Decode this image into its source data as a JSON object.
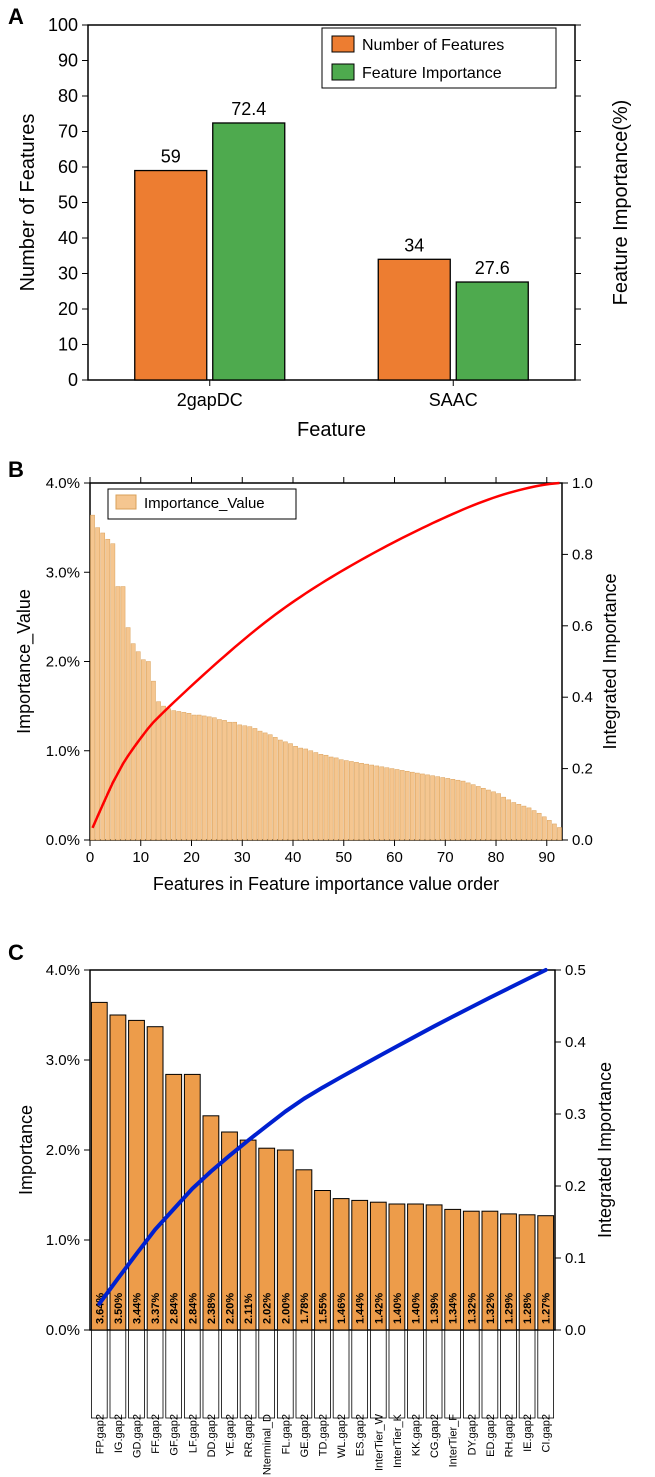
{
  "panelA": {
    "letter": "A",
    "type": "grouped-bar",
    "categories": [
      "2gapDC",
      "SAAC"
    ],
    "series": [
      {
        "name": "Number of Features",
        "color": "#ed7d31",
        "values": [
          59,
          34
        ]
      },
      {
        "name": "Feature Importance",
        "color": "#4eaa4e",
        "values": [
          72.4,
          27.6
        ]
      }
    ],
    "border_color": "#000000",
    "border_width": 1.3,
    "y_left": {
      "label": "Number of Features",
      "min": 0,
      "max": 100,
      "step": 10
    },
    "y_right": {
      "label": "Feature Importance(%)"
    },
    "x_label": "Feature",
    "legend": {
      "pos": "top-right",
      "items": [
        "Number of Features",
        "Feature Importance"
      ]
    },
    "value_labels": [
      "59",
      "72.4",
      "34",
      "27.6"
    ],
    "label_fontsize": 18,
    "tick_fontsize": 18,
    "title_fontsize": 20
  },
  "panelB": {
    "letter": "B",
    "type": "bar+line",
    "bar_color": "#f5c690",
    "bar_border": "#d9a05a",
    "line_color": "#ff0000",
    "line_width": 2.5,
    "x": {
      "label": "Features in Feature importance value order",
      "min": 0,
      "max": 93,
      "step": 10
    },
    "y_left": {
      "label": "Importance_Value",
      "min": 0,
      "max": 4.0,
      "step": 1.0,
      "suffix": "%"
    },
    "y_right": {
      "label": "Integrated Importance",
      "min": 0,
      "max": 1.0,
      "step": 0.2
    },
    "legend": {
      "pos": "top-left-inset",
      "items": [
        "Importance_Value"
      ]
    },
    "bars": [
      3.64,
      3.5,
      3.44,
      3.37,
      3.32,
      2.84,
      2.84,
      2.38,
      2.2,
      2.11,
      2.02,
      2.0,
      1.78,
      1.55,
      1.5,
      1.47,
      1.45,
      1.44,
      1.43,
      1.42,
      1.4,
      1.4,
      1.39,
      1.38,
      1.37,
      1.35,
      1.34,
      1.32,
      1.32,
      1.29,
      1.28,
      1.27,
      1.25,
      1.22,
      1.2,
      1.18,
      1.15,
      1.12,
      1.1,
      1.08,
      1.05,
      1.03,
      1.02,
      1.0,
      0.98,
      0.96,
      0.95,
      0.93,
      0.92,
      0.9,
      0.89,
      0.88,
      0.87,
      0.86,
      0.85,
      0.84,
      0.83,
      0.82,
      0.81,
      0.8,
      0.79,
      0.78,
      0.77,
      0.76,
      0.75,
      0.74,
      0.73,
      0.72,
      0.71,
      0.7,
      0.69,
      0.68,
      0.67,
      0.66,
      0.64,
      0.62,
      0.6,
      0.58,
      0.56,
      0.54,
      0.52,
      0.48,
      0.45,
      0.42,
      0.4,
      0.38,
      0.36,
      0.33,
      0.3,
      0.26,
      0.22,
      0.18,
      0.14
    ]
  },
  "panelC": {
    "letter": "C",
    "type": "bar+line",
    "bar_color": "#ed9c4a",
    "bar_border": "#000000",
    "line_color": "#0020d0",
    "line_width": 4,
    "y_left": {
      "label": "Importance",
      "min": 0,
      "max": 4.0,
      "step": 1.0,
      "suffix": "%"
    },
    "y_right": {
      "label": "Integrated Importance",
      "min": 0,
      "max": 0.5,
      "step": 0.1
    },
    "features": [
      "FP.gap2",
      "IG.gap2",
      "GD.gap2",
      "FF.gap2",
      "GF.gap2",
      "LF.gap2",
      "DD.gap2",
      "YE.gap2",
      "RR.gap2",
      "Nterminal_D",
      "FL.gap2",
      "GE.gap2",
      "TD.gap2",
      "WL.gap2",
      "ES.gap2",
      "InterTier_W",
      "InterTier_K",
      "KK.gap2",
      "CG.gap2",
      "InterTier_F",
      "DY.gap2",
      "ED.gap2",
      "RH.gap2",
      "IE.gap2",
      "CI.gap2"
    ],
    "values": [
      3.64,
      3.5,
      3.44,
      3.37,
      2.84,
      2.84,
      2.38,
      2.2,
      2.11,
      2.02,
      2.0,
      1.78,
      1.55,
      1.46,
      1.44,
      1.42,
      1.4,
      1.4,
      1.39,
      1.34,
      1.32,
      1.32,
      1.29,
      1.28,
      1.27
    ],
    "value_labels": [
      "3.64%",
      "3.50%",
      "3.44%",
      "3.37%",
      "2.84%",
      "2.84%",
      "2.38%",
      "2.20%",
      "2.11%",
      "2.02%",
      "2.00%",
      "1.78%",
      "1.55%",
      "1.46%",
      "1.44%",
      "1.42%",
      "1.40%",
      "1.40%",
      "1.39%",
      "1.34%",
      "1.32%",
      "1.32%",
      "1.29%",
      "1.28%",
      "1.27%"
    ],
    "label_fontsize": 18,
    "bar_label_fontsize": 11
  },
  "common": {
    "tick_len": 6,
    "axis_color": "#000000"
  }
}
